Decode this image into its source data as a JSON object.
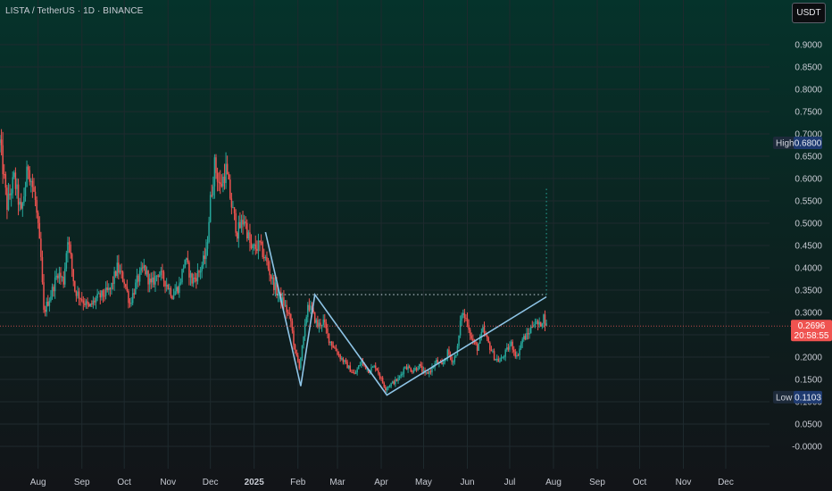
{
  "header": {
    "symbol_title": "LISTA / TetherUS · 1D · BINANCE",
    "currency_button": "USDT"
  },
  "colors": {
    "up": "#26a69a",
    "down": "#ef5350",
    "pattern_line": "#8ec4e6",
    "grid": "#1f2a2e",
    "price_line": "#ef5350"
  },
  "chart_data": {
    "type": "candlestick",
    "title": "LISTA / TetherUS · 1D · BINANCE",
    "ylim": [
      -0.05,
      1.0
    ],
    "y_ticks": [
      "0.9000",
      "0.8500",
      "0.8000",
      "0.7500",
      "0.7000",
      "0.6500",
      "0.6000",
      "0.5500",
      "0.5000",
      "0.4500",
      "0.4000",
      "0.3500",
      "0.3000",
      "0.2500",
      "0.2000",
      "0.1500",
      "0.1000",
      "0.0500",
      "-0.0000"
    ],
    "y_tick_values": [
      0.9,
      0.85,
      0.8,
      0.75,
      0.7,
      0.65,
      0.6,
      0.55,
      0.5,
      0.45,
      0.4,
      0.35,
      0.3,
      0.25,
      0.2,
      0.15,
      0.1,
      0.05,
      0.0
    ],
    "x_ticks": [
      {
        "label": "Aug",
        "date": "2024-08-01"
      },
      {
        "label": "Sep",
        "date": "2024-09-01"
      },
      {
        "label": "Oct",
        "date": "2024-10-01"
      },
      {
        "label": "Nov",
        "date": "2024-11-01"
      },
      {
        "label": "Dec",
        "date": "2024-12-01"
      },
      {
        "label": "2025",
        "date": "2025-01-01",
        "bold": true
      },
      {
        "label": "Feb",
        "date": "2025-02-01"
      },
      {
        "label": "Mar",
        "date": "2025-03-01"
      },
      {
        "label": "Apr",
        "date": "2025-04-01"
      },
      {
        "label": "May",
        "date": "2025-05-01"
      },
      {
        "label": "Jun",
        "date": "2025-06-01"
      },
      {
        "label": "Jul",
        "date": "2025-07-01"
      },
      {
        "label": "Aug",
        "date": "2025-08-01"
      },
      {
        "label": "Sep",
        "date": "2025-09-01"
      },
      {
        "label": "Oct",
        "date": "2025-10-01"
      },
      {
        "label": "Nov",
        "date": "2025-11-01"
      },
      {
        "label": "Dec",
        "date": "2025-12-01"
      }
    ],
    "x_range": [
      "2024-07-05",
      "2026-01-01"
    ],
    "close_path": [
      [
        "2024-07-05",
        0.68
      ],
      [
        "2024-07-10",
        0.54
      ],
      [
        "2024-07-15",
        0.6
      ],
      [
        "2024-07-20",
        0.52
      ],
      [
        "2024-07-25",
        0.63
      ],
      [
        "2024-07-30",
        0.55
      ],
      [
        "2024-08-03",
        0.42
      ],
      [
        "2024-08-05",
        0.3
      ],
      [
        "2024-08-10",
        0.34
      ],
      [
        "2024-08-15",
        0.39
      ],
      [
        "2024-08-19",
        0.37
      ],
      [
        "2024-08-22",
        0.47
      ],
      [
        "2024-08-27",
        0.35
      ],
      [
        "2024-09-01",
        0.33
      ],
      [
        "2024-09-06",
        0.31
      ],
      [
        "2024-09-11",
        0.33
      ],
      [
        "2024-09-16",
        0.34
      ],
      [
        "2024-09-21",
        0.35
      ],
      [
        "2024-09-26",
        0.4
      ],
      [
        "2024-10-01",
        0.37
      ],
      [
        "2024-10-05",
        0.32
      ],
      [
        "2024-10-10",
        0.37
      ],
      [
        "2024-10-15",
        0.4
      ],
      [
        "2024-10-20",
        0.36
      ],
      [
        "2024-10-25",
        0.39
      ],
      [
        "2024-10-30",
        0.37
      ],
      [
        "2024-11-04",
        0.34
      ],
      [
        "2024-11-09",
        0.36
      ],
      [
        "2024-11-13",
        0.42
      ],
      [
        "2024-11-18",
        0.37
      ],
      [
        "2024-11-23",
        0.39
      ],
      [
        "2024-11-28",
        0.43
      ],
      [
        "2024-12-01",
        0.55
      ],
      [
        "2024-12-04",
        0.63
      ],
      [
        "2024-12-08",
        0.58
      ],
      [
        "2024-12-12",
        0.62
      ],
      [
        "2024-12-16",
        0.54
      ],
      [
        "2024-12-20",
        0.48
      ],
      [
        "2024-12-25",
        0.51
      ],
      [
        "2024-12-30",
        0.44
      ],
      [
        "2025-01-05",
        0.45
      ],
      [
        "2025-01-10",
        0.41
      ],
      [
        "2025-01-14",
        0.37
      ],
      [
        "2025-01-18",
        0.34
      ],
      [
        "2025-01-22",
        0.32
      ],
      [
        "2025-01-27",
        0.28
      ],
      [
        "2025-01-30",
        0.21
      ],
      [
        "2025-02-02",
        0.18
      ],
      [
        "2025-02-05",
        0.24
      ],
      [
        "2025-02-08",
        0.32
      ],
      [
        "2025-02-11",
        0.3
      ],
      [
        "2025-02-15",
        0.27
      ],
      [
        "2025-02-19",
        0.28
      ],
      [
        "2025-02-23",
        0.24
      ],
      [
        "2025-02-27",
        0.22
      ],
      [
        "2025-03-03",
        0.2
      ],
      [
        "2025-03-08",
        0.18
      ],
      [
        "2025-03-13",
        0.16
      ],
      [
        "2025-03-18",
        0.19
      ],
      [
        "2025-03-23",
        0.17
      ],
      [
        "2025-03-28",
        0.18
      ],
      [
        "2025-04-01",
        0.15
      ],
      [
        "2025-04-04",
        0.13
      ],
      [
        "2025-04-08",
        0.14
      ],
      [
        "2025-04-13",
        0.15
      ],
      [
        "2025-04-18",
        0.18
      ],
      [
        "2025-04-23",
        0.17
      ],
      [
        "2025-04-28",
        0.18
      ],
      [
        "2025-05-02",
        0.16
      ],
      [
        "2025-05-06",
        0.17
      ],
      [
        "2025-05-10",
        0.19
      ],
      [
        "2025-05-14",
        0.18
      ],
      [
        "2025-05-18",
        0.21
      ],
      [
        "2025-05-22",
        0.19
      ],
      [
        "2025-05-25",
        0.22
      ],
      [
        "2025-05-28",
        0.3
      ],
      [
        "2025-06-01",
        0.28
      ],
      [
        "2025-06-04",
        0.24
      ],
      [
        "2025-06-08",
        0.22
      ],
      [
        "2025-06-12",
        0.26
      ],
      [
        "2025-06-16",
        0.23
      ],
      [
        "2025-06-20",
        0.2
      ],
      [
        "2025-06-24",
        0.19
      ],
      [
        "2025-06-28",
        0.21
      ],
      [
        "2025-07-02",
        0.23
      ],
      [
        "2025-07-06",
        0.2
      ],
      [
        "2025-07-10",
        0.24
      ],
      [
        "2025-07-14",
        0.25
      ],
      [
        "2025-07-18",
        0.28
      ],
      [
        "2025-07-22",
        0.27
      ],
      [
        "2025-07-25",
        0.29
      ],
      [
        "2025-07-27",
        0.2696
      ]
    ],
    "pattern_line": [
      [
        "2025-01-09",
        0.48
      ],
      [
        "2025-02-03",
        0.135
      ],
      [
        "2025-02-13",
        0.34
      ],
      [
        "2025-04-05",
        0.115
      ],
      [
        "2025-07-27",
        0.335
      ]
    ],
    "breakout_level": {
      "start": "2025-01-14",
      "end": "2025-07-27",
      "value": 0.34
    },
    "target_projection": {
      "date": "2025-07-27",
      "from": 0.34,
      "to": 0.58
    },
    "last_price": {
      "value": 0.2696,
      "label": "0.2696",
      "countdown": "20:58:55"
    },
    "high": {
      "label": "High",
      "value": 0.68,
      "value_label": "0.6800"
    },
    "low": {
      "label": "Low",
      "value": 0.1103,
      "value_label": "0.1103"
    }
  }
}
